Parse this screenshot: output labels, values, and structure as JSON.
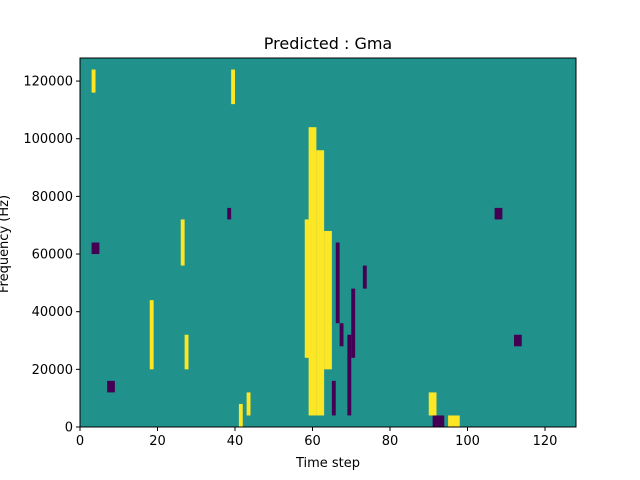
{
  "chart_data": {
    "type": "heatmap",
    "title": "Predicted : Gma",
    "xlabel": "Time step",
    "ylabel": "Frequency (Hz)",
    "xlim": [
      0,
      128
    ],
    "ylim": [
      0,
      128000
    ],
    "xticks": [
      0,
      20,
      40,
      60,
      80,
      100,
      120
    ],
    "xtick_labels": [
      "0",
      "20",
      "40",
      "60",
      "80",
      "100",
      "120"
    ],
    "yticks": [
      0,
      20000,
      40000,
      60000,
      80000,
      100000,
      120000
    ],
    "ytick_labels": [
      "0",
      "20000",
      "40000",
      "60000",
      "80000",
      "100000",
      "120000"
    ],
    "grid": false,
    "colormap": "viridis",
    "levels": {
      "low": "#440154",
      "mid": "#21918c",
      "high": "#fde725"
    },
    "background_level": "mid",
    "bin_width_x": 1,
    "bin_height_y": 4000,
    "high_bins": [
      {
        "x": [
          59,
          61
        ],
        "y": [
          4000,
          104000
        ]
      },
      {
        "x": [
          61,
          63
        ],
        "y": [
          4000,
          96000
        ]
      },
      {
        "x": [
          63,
          65
        ],
        "y": [
          20000,
          68000
        ]
      },
      {
        "x": [
          58,
          60
        ],
        "y": [
          24000,
          72000
        ]
      },
      {
        "x": [
          41,
          42
        ],
        "y": [
          0,
          8000
        ]
      },
      {
        "x": [
          43,
          44
        ],
        "y": [
          4000,
          12000
        ]
      },
      {
        "x": [
          27,
          28
        ],
        "y": [
          20000,
          32000
        ]
      },
      {
        "x": [
          26,
          27
        ],
        "y": [
          56000,
          72000
        ]
      },
      {
        "x": [
          18,
          19
        ],
        "y": [
          20000,
          44000
        ]
      },
      {
        "x": [
          90,
          92
        ],
        "y": [
          4000,
          12000
        ]
      },
      {
        "x": [
          95,
          98
        ],
        "y": [
          0,
          4000
        ]
      },
      {
        "x": [
          3,
          4
        ],
        "y": [
          116000,
          124000
        ]
      },
      {
        "x": [
          39,
          40
        ],
        "y": [
          112000,
          124000
        ]
      }
    ],
    "low_bins": [
      {
        "x": [
          69,
          70
        ],
        "y": [
          4000,
          32000
        ]
      },
      {
        "x": [
          70,
          71
        ],
        "y": [
          24000,
          48000
        ]
      },
      {
        "x": [
          73,
          74
        ],
        "y": [
          48000,
          56000
        ]
      },
      {
        "x": [
          66,
          67
        ],
        "y": [
          36000,
          64000
        ]
      },
      {
        "x": [
          3,
          5
        ],
        "y": [
          60000,
          64000
        ]
      },
      {
        "x": [
          91,
          94
        ],
        "y": [
          0,
          4000
        ]
      },
      {
        "x": [
          7,
          9
        ],
        "y": [
          12000,
          16000
        ]
      },
      {
        "x": [
          38,
          39
        ],
        "y": [
          72000,
          76000
        ]
      },
      {
        "x": [
          107,
          109
        ],
        "y": [
          72000,
          76000
        ]
      },
      {
        "x": [
          112,
          114
        ],
        "y": [
          28000,
          32000
        ]
      },
      {
        "x": [
          65,
          66
        ],
        "y": [
          4000,
          16000
        ]
      },
      {
        "x": [
          67,
          68
        ],
        "y": [
          28000,
          36000
        ]
      }
    ]
  }
}
